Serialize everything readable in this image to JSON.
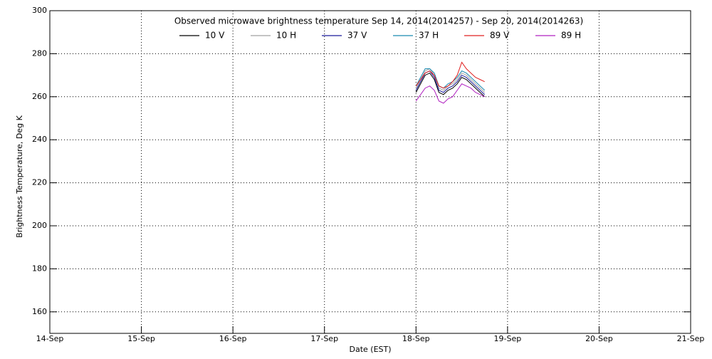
{
  "chart_data": {
    "type": "line",
    "title": "Observed microwave brightness temperature Sep 14, 2014(2014257) - Sep 20, 2014(2014263)",
    "x_label": "Date (EST)",
    "y_label": "Brightness Temperature, Deg K",
    "x": [
      18.0,
      18.05,
      18.1,
      18.15,
      18.2,
      18.25,
      18.3,
      18.35,
      18.4,
      18.45,
      18.5,
      18.55,
      18.6,
      18.65,
      18.7,
      18.75
    ],
    "series": [
      {
        "name": "10 V",
        "color": "#000000",
        "values": [
          262,
          266,
          270,
          271,
          268,
          262,
          261,
          263,
          264,
          266,
          269,
          268,
          266,
          264,
          262,
          260
        ]
      },
      {
        "name": "10 H",
        "color": "#a0a0a0",
        "values": [
          264,
          268,
          272,
          273,
          270,
          264,
          263,
          265,
          266,
          268,
          271,
          270,
          268,
          266,
          264,
          262
        ]
      },
      {
        "name": "37 V",
        "color": "#1a1a9a",
        "values": [
          263,
          267,
          271,
          272,
          269,
          263,
          262,
          264,
          265,
          267,
          270,
          269,
          267,
          265,
          263,
          261
        ]
      },
      {
        "name": "37 H",
        "color": "#1a8ab0",
        "values": [
          265,
          269,
          273,
          273,
          271,
          265,
          264,
          266,
          267,
          269,
          272,
          271,
          269,
          267,
          265,
          263
        ]
      },
      {
        "name": "89 V",
        "color": "#e02020",
        "values": [
          265,
          268,
          271,
          272,
          270,
          265,
          264,
          265,
          267,
          270,
          276,
          273,
          271,
          269,
          268,
          267
        ]
      },
      {
        "name": "89 H",
        "color": "#b020c0",
        "values": [
          258,
          261,
          264,
          265,
          263,
          258,
          257,
          259,
          260,
          263,
          266,
          265,
          264,
          262,
          261,
          260
        ]
      }
    ],
    "xlim": [
      14,
      21
    ],
    "xticks": [
      {
        "value": 14,
        "label": "14-Sep"
      },
      {
        "value": 15,
        "label": "15-Sep"
      },
      {
        "value": 16,
        "label": "16-Sep"
      },
      {
        "value": 17,
        "label": "17-Sep"
      },
      {
        "value": 18,
        "label": "18-Sep"
      },
      {
        "value": 19,
        "label": "19-Sep"
      },
      {
        "value": 20,
        "label": "20-Sep"
      },
      {
        "value": 21,
        "label": "21-Sep"
      }
    ],
    "ylim": [
      150,
      300
    ],
    "yticks": [
      160,
      180,
      200,
      220,
      240,
      260,
      280,
      300
    ],
    "grid": true
  }
}
